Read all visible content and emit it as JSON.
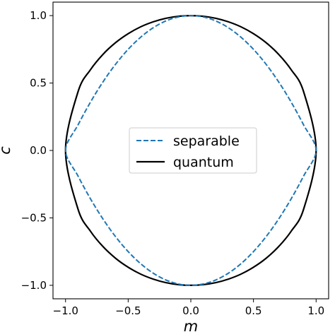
{
  "chart_data": {
    "type": "line",
    "title": "",
    "xlabel": "m",
    "ylabel": "c",
    "xlim": [
      -1.1,
      1.1
    ],
    "ylim": [
      -1.1,
      1.1
    ],
    "grid": false,
    "legend_position": "center",
    "x_ticks": [
      -1.0,
      -0.5,
      0.0,
      0.5,
      1.0
    ],
    "x_tick_labels": [
      "−1.0",
      "−0.5",
      "0.0",
      "0.5",
      "1.0"
    ],
    "y_ticks": [
      -1.0,
      -0.5,
      0.0,
      0.5,
      1.0
    ],
    "y_tick_labels": [
      "−1.0",
      "−0.5",
      "0.0",
      "0.5",
      "1.0"
    ],
    "series": [
      {
        "name": "separable",
        "style": "dashed",
        "color": "#1f77b4",
        "x": [
          -1.0,
          -0.9,
          -0.8,
          -0.7,
          -0.6,
          -0.5,
          -0.4,
          -0.3,
          -0.2,
          -0.1,
          0.0,
          0.1,
          0.2,
          0.3,
          0.4,
          0.5,
          0.6,
          0.7,
          0.8,
          0.9,
          1.0,
          0.9,
          0.8,
          0.7,
          0.6,
          0.5,
          0.4,
          0.3,
          0.2,
          0.1,
          0.0,
          -0.1,
          -0.2,
          -0.3,
          -0.4,
          -0.5,
          -0.6,
          -0.7,
          -0.8,
          -0.9,
          -1.0
        ],
        "y": [
          0.0,
          0.19,
          0.36,
          0.51,
          0.64,
          0.75,
          0.84,
          0.91,
          0.96,
          0.99,
          1.0,
          0.99,
          0.96,
          0.91,
          0.84,
          0.75,
          0.64,
          0.51,
          0.36,
          0.19,
          0.0,
          -0.19,
          -0.36,
          -0.51,
          -0.64,
          -0.75,
          -0.84,
          -0.91,
          -0.96,
          -0.99,
          -1.0,
          -0.99,
          -0.96,
          -0.91,
          -0.84,
          -0.75,
          -0.64,
          -0.51,
          -0.36,
          -0.19,
          0.0
        ]
      },
      {
        "name": "quantum",
        "style": "solid",
        "color": "#000000",
        "x": [
          -1.0,
          -0.9,
          -0.8,
          -0.7,
          -0.6,
          -0.5,
          -0.4,
          -0.3,
          -0.2,
          -0.1,
          0.0,
          0.1,
          0.2,
          0.3,
          0.4,
          0.5,
          0.6,
          0.7,
          0.8,
          0.9,
          1.0,
          0.9,
          0.8,
          0.7,
          0.6,
          0.5,
          0.4,
          0.3,
          0.2,
          0.1,
          0.0,
          -0.1,
          -0.2,
          -0.3,
          -0.4,
          -0.5,
          -0.6,
          -0.7,
          -0.8,
          -0.9,
          -1.0
        ],
        "y": [
          0.0,
          0.436,
          0.6,
          0.714,
          0.8,
          0.866,
          0.917,
          0.954,
          0.98,
          0.995,
          1.0,
          0.995,
          0.98,
          0.954,
          0.917,
          0.866,
          0.8,
          0.714,
          0.6,
          0.436,
          0.0,
          -0.436,
          -0.6,
          -0.714,
          -0.8,
          -0.866,
          -0.917,
          -0.954,
          -0.98,
          -0.995,
          -1.0,
          -0.995,
          -0.98,
          -0.954,
          -0.917,
          -0.866,
          -0.8,
          -0.714,
          -0.6,
          -0.436,
          0.0
        ]
      }
    ]
  }
}
